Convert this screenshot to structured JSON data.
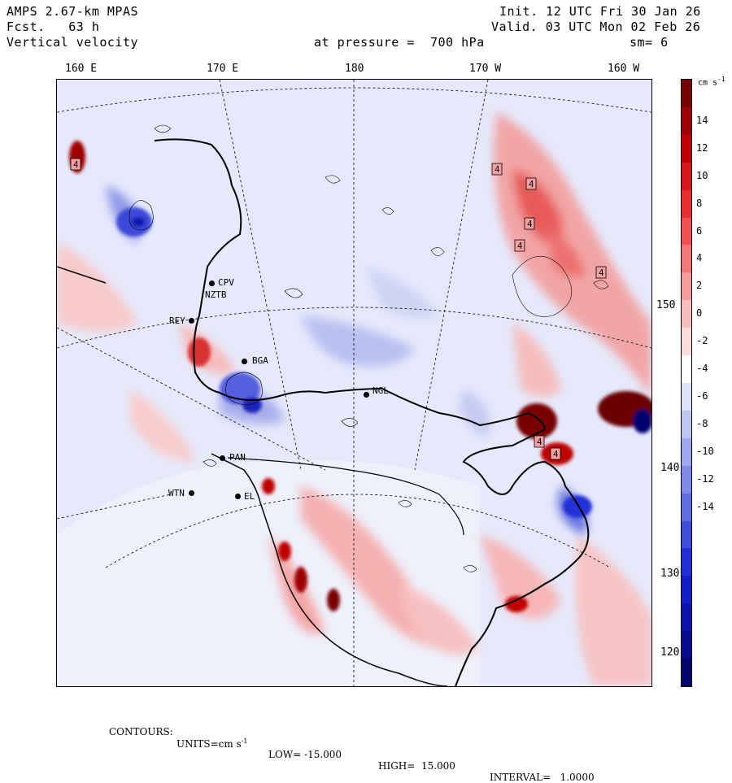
{
  "header": {
    "model": "AMPS 2.67-km MPAS",
    "forecast": "Fcst.   63 h",
    "field": "Vertical velocity",
    "pressure": "at pressure =  700 hPa",
    "init": "Init. 12 UTC Fri 30 Jan 26",
    "valid": "Valid. 03 UTC Mon 02 Feb 26",
    "smoothing": "sm= 6"
  },
  "longitude_labels": [
    "160 E",
    "170 E",
    "180",
    "170 W",
    "160 W"
  ],
  "latitude_labels": [
    "150 W",
    "140 W",
    "130 W",
    "120 W"
  ],
  "stations": [
    {
      "name": "CPV"
    },
    {
      "name": "NZTB"
    },
    {
      "name": "REY"
    },
    {
      "name": "BGA"
    },
    {
      "name": "NGL"
    },
    {
      "name": "PAN"
    },
    {
      "name": "WTN"
    },
    {
      "name": "EL"
    }
  ],
  "colorbar": {
    "units": "cm s",
    "units_exp": "-1",
    "labels": [
      "14",
      "12",
      "10",
      "8",
      "6",
      "4",
      "2",
      "0",
      "-2",
      "-4",
      "-6",
      "-8",
      "-10",
      "-12",
      "-14"
    ],
    "colors": [
      "#7a0000",
      "#9c0000",
      "#c00000",
      "#d61818",
      "#e83030",
      "#f05050",
      "#f47676",
      "#f69b9b",
      "#f8bcbc",
      "#fadcdc",
      "#ffffff",
      "#dde2f8",
      "#bec6f2",
      "#9ea8ec",
      "#7f8ae6",
      "#606ce0",
      "#3f4edb",
      "#2030d6",
      "#0e1ec9",
      "#0a14ac",
      "#060a8c",
      "#03056e"
    ]
  },
  "map_data": {
    "contour_labels": [
      "4",
      "4",
      "4",
      "4",
      "4",
      "4",
      "4",
      "4"
    ]
  },
  "footer": {
    "contours": "CONTOURS:",
    "units": "UNITS=cm s",
    "units_exp": "-1",
    "low": "LOW= -15.000",
    "high": "HIGH=  15.000",
    "interval": "INTERVAL=   1.0000"
  }
}
